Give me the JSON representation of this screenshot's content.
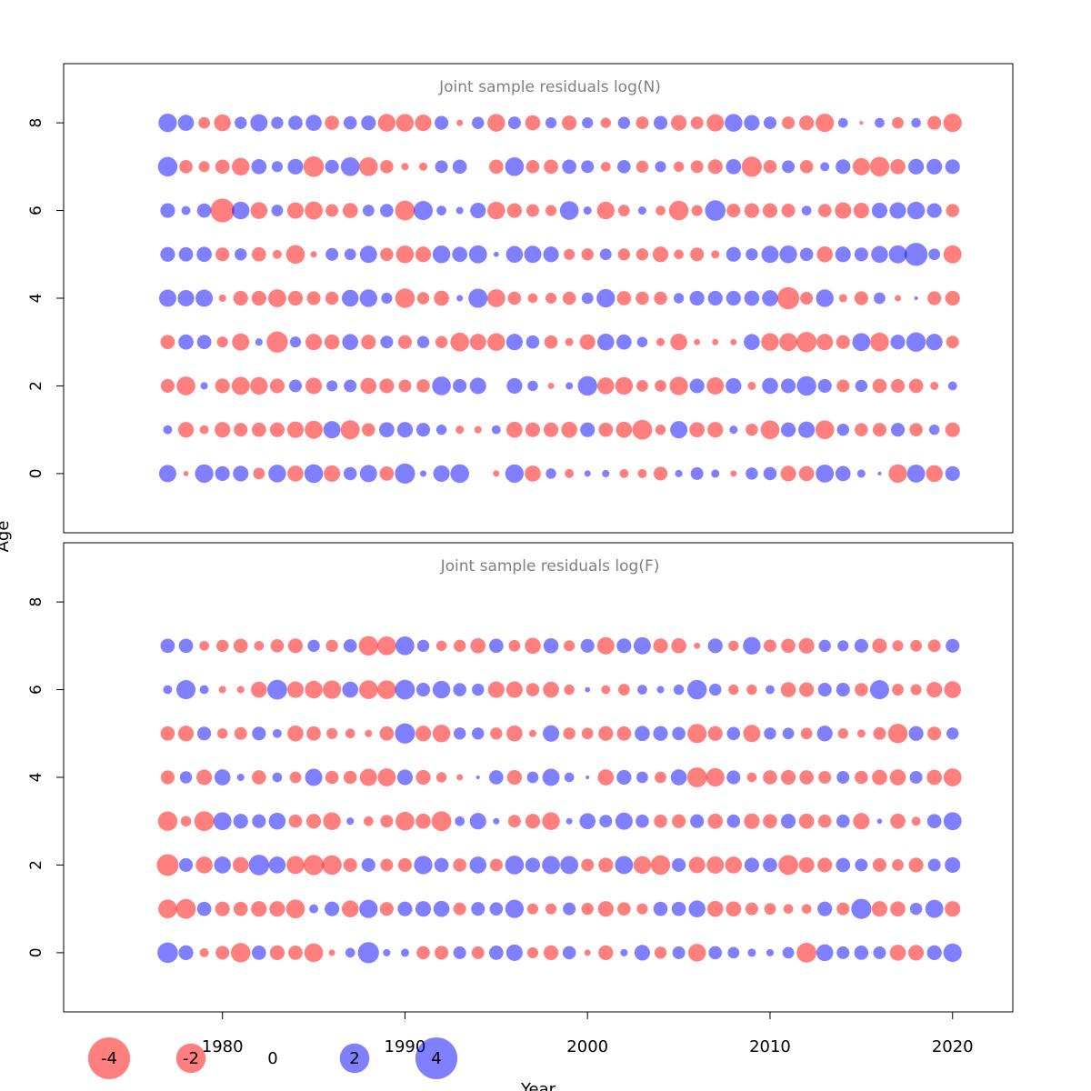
{
  "chart_data": {
    "type": "scatter",
    "encoding": "bubble",
    "x_ticks": [
      "1980",
      "1990",
      "2000",
      "2010",
      "2020"
    ],
    "xlim": [
      1971.3,
      2023.3
    ],
    "xlabel": "Year",
    "ylabel": "Age",
    "legend": {
      "position": "bottom-left",
      "entries": [
        {
          "label": "-4",
          "value": -4
        },
        {
          "label": "-2",
          "value": -2
        },
        {
          "label": "0",
          "value": 0
        },
        {
          "label": "2",
          "value": 2
        },
        {
          "label": "4",
          "value": 4
        }
      ]
    },
    "colors": {
      "negative": "#ff0000",
      "positive": "#0000ff",
      "title": "#808080"
    },
    "years": [
      1977,
      1978,
      1979,
      1980,
      1981,
      1982,
      1983,
      1984,
      1985,
      1986,
      1987,
      1988,
      1989,
      1990,
      1991,
      1992,
      1993,
      1994,
      1995,
      1996,
      1997,
      1998,
      1999,
      2000,
      2001,
      2002,
      2003,
      2004,
      2005,
      2006,
      2007,
      2008,
      2009,
      2010,
      2011,
      2012,
      2013,
      2014,
      2015,
      2016,
      2017,
      2018,
      2019,
      2020
    ],
    "panels": [
      {
        "title": "Joint sample residuals log(N)",
        "y_ticks": [
          "0",
          "2",
          "4",
          "6",
          "8"
        ],
        "ylim": [
          -1.35,
          9.35
        ],
        "ages": [
          0,
          1,
          2,
          3,
          4,
          5,
          6,
          7,
          8
        ],
        "residuals": [
          [
            2.2,
            -0.2,
            2.5,
            1.6,
            1.8,
            -1.0,
            2.3,
            -1.9,
            2.6,
            -2.0,
            1.3,
            2.2,
            -1.5,
            3.0,
            0.3,
            2.0,
            2.6,
            0,
            -0.3,
            2.5,
            -1.9,
            0.8,
            -0.6,
            0.3,
            0.4,
            -0.6,
            -0.6,
            -1.4,
            0.4,
            1.2,
            0.5,
            -0.3,
            1.1,
            1.3,
            -1.8,
            -1.7,
            2.4,
            1.7,
            0.5,
            0.1,
            -2.5,
            2.4,
            -2.1,
            1.6
          ],
          [
            0.6,
            -1.8,
            -0.6,
            -1.8,
            -1.4,
            -1.5,
            -1.6,
            -2.0,
            -2.4,
            2.2,
            -2.7,
            -1.3,
            1.7,
            1.8,
            1.4,
            0.8,
            -0.5,
            -0.4,
            0.6,
            -1.9,
            -1.6,
            -1.6,
            -1.9,
            1.6,
            -1.5,
            -1.9,
            -2.9,
            -0.8,
            2.2,
            -1.7,
            -1.8,
            0.5,
            -1.1,
            -2.6,
            1.6,
            2.0,
            -2.6,
            1.1,
            -1.3,
            -1.4,
            1.4,
            -1.3,
            0.8,
            -1.6
          ],
          [
            -1.4,
            -2.6,
            0.4,
            -1.6,
            -2.4,
            -2.3,
            -1.6,
            1.2,
            -2.0,
            0.9,
            1.2,
            -1.9,
            -1.6,
            -1.2,
            -1.3,
            2.6,
            1.4,
            2.0,
            0,
            1.8,
            0.8,
            -0.3,
            0.4,
            2.8,
            -2.1,
            -2.3,
            -1.0,
            -1.0,
            -2.5,
            1.6,
            -2.2,
            1.8,
            -0.5,
            1.9,
            1.6,
            2.8,
            1.4,
            -1.2,
            1.1,
            -1.5,
            -1.4,
            -1.5,
            -0.5,
            0.6
          ],
          [
            -1.5,
            1.7,
            1.5,
            -0.9,
            -2.2,
            0.4,
            -3.3,
            0.9,
            -2.0,
            -1.7,
            1.9,
            -1.6,
            1.2,
            -1.4,
            1.1,
            -1.1,
            -2.6,
            -2.0,
            -2.3,
            2.0,
            1.3,
            -1.3,
            -0.5,
            -1.8,
            2.1,
            1.7,
            0.8,
            -0.5,
            -2.1,
            -0.3,
            -0.3,
            -0.3,
            1.9,
            -2.3,
            -2.4,
            -3.0,
            -2.0,
            -1.4,
            2.4,
            -2.6,
            1.6,
            2.8,
            2.0,
            -1.2
          ],
          [
            2.2,
            2.0,
            2.2,
            -0.4,
            -1.6,
            -1.6,
            -2.4,
            -1.6,
            -1.4,
            -1.3,
            2.1,
            2.3,
            0.9,
            -2.8,
            -1.1,
            -1.7,
            0.3,
            2.7,
            -2.4,
            -1.3,
            -0.7,
            -0.9,
            -1.3,
            1.0,
            2.5,
            -1.5,
            -1.3,
            -1.3,
            0.8,
            1.6,
            1.6,
            1.6,
            1.7,
            1.9,
            -3.6,
            -1.2,
            2.3,
            -0.5,
            -1.4,
            1.0,
            -0.3,
            0.1,
            -1.4,
            -1.6
          ],
          [
            1.6,
            1.5,
            1.7,
            -1.4,
            1.1,
            -1.5,
            -0.6,
            -2.6,
            -0.3,
            1.2,
            1.0,
            2.2,
            -1.3,
            -2.3,
            -1.8,
            2.3,
            1.7,
            2.4,
            0.2,
            2.1,
            2.2,
            1.8,
            -0.9,
            -1.1,
            1.0,
            -1.1,
            -1.1,
            -1.8,
            -0.7,
            -1.4,
            -0.5,
            1.6,
            1.1,
            2.2,
            2.3,
            1.3,
            -1.9,
            1.8,
            1.4,
            2.1,
            2.4,
            3.9,
            1.0,
            -2.4
          ],
          [
            1.6,
            0.6,
            1.5,
            -4.2,
            2.3,
            -2.1,
            1.0,
            -2.0,
            -2.4,
            -1.2,
            -1.7,
            1.0,
            1.3,
            -2.9,
            2.7,
            0.7,
            0.4,
            1.8,
            -2.3,
            -1.6,
            -1.2,
            -0.9,
            2.6,
            0.5,
            -2.3,
            -1.0,
            0.5,
            -0.7,
            -2.8,
            -0.9,
            3.1,
            -1.4,
            -1.6,
            -1.6,
            -1.4,
            0.7,
            -1.3,
            -2.0,
            -1.8,
            1.8,
            2.0,
            2.3,
            1.6,
            -1.3
          ],
          [
            2.8,
            -1.3,
            -0.9,
            -1.5,
            -2.3,
            1.7,
            0.9,
            1.8,
            -3.1,
            1.4,
            2.6,
            -2.6,
            -1.3,
            -0.4,
            -0.5,
            1.2,
            1.5,
            0,
            -1.5,
            2.6,
            -1.3,
            -1.5,
            1.5,
            1.2,
            -0.7,
            1.3,
            -1.1,
            0.9,
            -0.8,
            -1.2,
            -1.6,
            1.7,
            -3.0,
            -1.3,
            1.2,
            -1.3,
            0.6,
            1.6,
            -2.2,
            -2.8,
            -1.7,
            1.8,
            1.8,
            1.6
          ],
          [
            2.5,
            1.9,
            -1.0,
            -2.1,
            1.1,
            2.2,
            1.1,
            1.5,
            1.9,
            -1.5,
            1.3,
            1.6,
            -2.3,
            -2.3,
            -2.0,
            1.4,
            -0.3,
            1.1,
            -2.3,
            1.2,
            -1.7,
            0.9,
            -1.6,
            0.9,
            -0.8,
            1.1,
            -1.2,
            1.4,
            -1.8,
            -1.2,
            -2.2,
            2.3,
            1.8,
            1.2,
            -1.2,
            -1.6,
            -2.5,
            0.7,
            -0.1,
            0.7,
            -1.0,
            0.7,
            -1.4,
            -2.5
          ]
        ]
      },
      {
        "title": "Joint sample residuals log(F)",
        "y_ticks": [
          "0",
          "2",
          "4",
          "6",
          "8"
        ],
        "ylim": [
          -1.35,
          9.35
        ],
        "ages": [
          0,
          1,
          2,
          3,
          4,
          5,
          6,
          7
        ],
        "residuals": [
          [
            3.1,
            1.6,
            -0.6,
            -1.4,
            -2.8,
            1.5,
            -1.6,
            -1.5,
            -2.6,
            -0.3,
            0.7,
            3.3,
            0.4,
            0.5,
            -1.3,
            -1.4,
            1.2,
            -1.2,
            1.5,
            2.0,
            -0.9,
            -1.6,
            1.3,
            -0.3,
            -1.6,
            0.4,
            1.8,
            -1.1,
            1.2,
            -2.3,
            1.3,
            1.0,
            0.5,
            0.4,
            1.0,
            -2.9,
            2.1,
            1.2,
            1.5,
            1.2,
            -1.9,
            -1.8,
            1.6,
            2.5
          ],
          [
            -2.6,
            -2.9,
            1.5,
            -1.6,
            -1.5,
            -1.8,
            -1.8,
            -2.6,
            0.6,
            1.6,
            -2.1,
            2.5,
            -1.4,
            1.6,
            1.8,
            1.9,
            -1.2,
            1.4,
            1.3,
            2.5,
            -0.9,
            -0.9,
            1.2,
            -1.1,
            -1.8,
            -1.3,
            -0.9,
            1.5,
            1.5,
            2.1,
            -1.9,
            -1.7,
            -1.2,
            -1.0,
            -0.7,
            -0.7,
            1.6,
            -1.2,
            3.0,
            -1.8,
            -1.7,
            1.1,
            2.4,
            -1.8
          ],
          [
            -3.5,
            1.4,
            -2.1,
            2.1,
            -1.9,
            3.1,
            2.1,
            -2.4,
            -3.0,
            -2.8,
            -1.4,
            1.4,
            -1.2,
            -1.4,
            2.5,
            1.5,
            -1.3,
            2.1,
            -1.2,
            2.6,
            1.6,
            2.4,
            2.4,
            -1.2,
            -1.6,
            2.4,
            -2.3,
            -2.8,
            1.4,
            -2.0,
            -2.2,
            -2.1,
            1.6,
            1.5,
            -2.9,
            -1.8,
            -1.6,
            1.5,
            1.2,
            -1.4,
            -1.0,
            -1.6,
            1.2,
            1.8
          ],
          [
            -2.8,
            -0.8,
            -2.9,
            2.4,
            1.6,
            1.4,
            2.1,
            -1.3,
            -1.6,
            -2.3,
            0.4,
            -0.7,
            -1.2,
            -2.6,
            -1.7,
            -2.9,
            0.7,
            2.0,
            0.3,
            -1.2,
            -1.6,
            -2.3,
            0.3,
            1.9,
            1.2,
            2.2,
            1.3,
            -1.3,
            -1.4,
            1.4,
            -1.7,
            1.3,
            -1.8,
            -1.5,
            1.6,
            -1.7,
            -1.3,
            1.3,
            -2.0,
            0.2,
            -1.7,
            -0.6,
            1.5,
            2.4
          ],
          [
            -1.4,
            1.1,
            -1.8,
            1.9,
            0.4,
            -1.5,
            0.7,
            -1.0,
            2.2,
            -1.3,
            -1.3,
            -2.2,
            -2.4,
            1.8,
            -1.6,
            -0.8,
            -0.3,
            0.1,
            1.5,
            -1.6,
            1.0,
            2.2,
            0.7,
            0.1,
            -1.9,
            1.6,
            1.0,
            -1.0,
            1.9,
            -2.9,
            -2.5,
            1.4,
            -0.7,
            -1.5,
            -1.6,
            -1.5,
            -1.2,
            1.2,
            -1.3,
            -1.7,
            -1.9,
            1.2,
            -1.7,
            -2.4
          ],
          [
            -1.5,
            -1.8,
            1.4,
            -0.8,
            -1.2,
            1.4,
            0.6,
            -1.9,
            -1.5,
            -0.9,
            -0.7,
            -0.4,
            -1.5,
            3.0,
            -1.8,
            -2.3,
            1.1,
            1.1,
            -1.1,
            -1.9,
            -0.4,
            2.0,
            -1.1,
            -1.0,
            -1.6,
            -1.5,
            1.7,
            1.6,
            1.3,
            -2.7,
            -1.6,
            1.3,
            -2.2,
            1.1,
            1.0,
            -1.0,
            1.8,
            -0.8,
            -0.5,
            -1.2,
            -2.8,
            1.6,
            -1.4,
            1.1
          ],
          [
            0.6,
            2.7,
            0.6,
            -0.4,
            -0.4,
            -1.9,
            2.9,
            -2.0,
            -2.3,
            -2.5,
            1.9,
            -2.6,
            -2.6,
            2.9,
            1.4,
            2.3,
            1.3,
            1.1,
            -2.0,
            -2.0,
            -1.3,
            -1.9,
            -0.8,
            0.2,
            -0.6,
            -1.0,
            0.7,
            0.4,
            0.8,
            2.8,
            1.1,
            -0.8,
            -0.8,
            0.6,
            -1.7,
            -1.6,
            1.4,
            1.4,
            -1.3,
            2.7,
            -1.0,
            -0.9,
            -1.8,
            -2.1
          ],
          [
            1.5,
            1.5,
            -0.7,
            -1.1,
            -1.5,
            -0.7,
            -1.3,
            -1.6,
            1.1,
            -1.1,
            1.3,
            -2.8,
            -2.6,
            2.6,
            1.1,
            -0.8,
            -1.1,
            -1.7,
            1.5,
            -1.0,
            -1.9,
            1.7,
            -0.9,
            1.4,
            -2.2,
            1.6,
            2.2,
            -1.6,
            -1.7,
            -0.3,
            1.6,
            -0.8,
            2.3,
            -1.2,
            -1.5,
            -1.8,
            1.1,
            0.9,
            1.4,
            -1.6,
            -0.9,
            -1.0,
            -1.2,
            1.4
          ]
        ]
      }
    ]
  }
}
